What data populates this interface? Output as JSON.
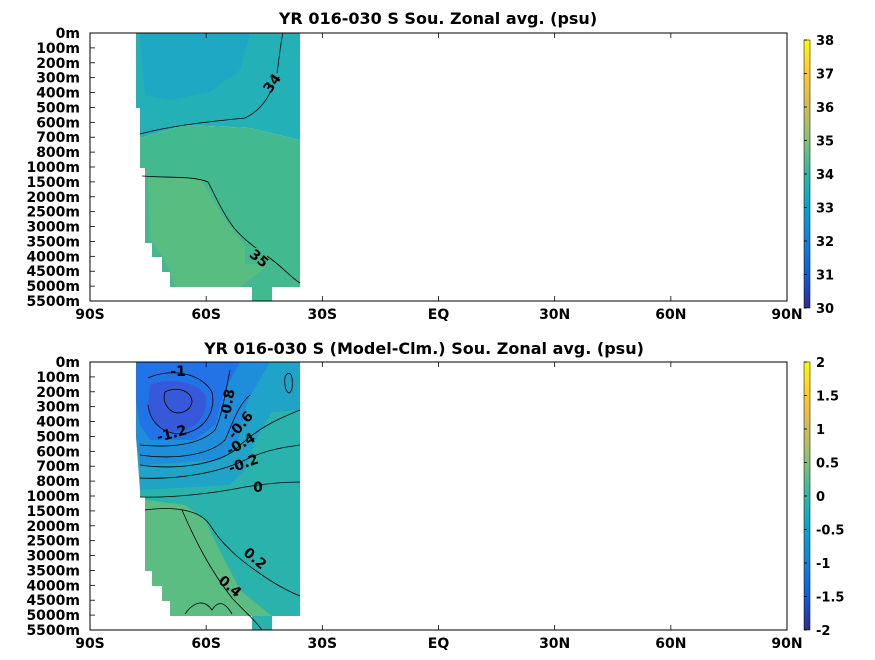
{
  "chart_data": [
    {
      "type": "heatmap",
      "title": "YR 016-030 S Sou. Zonal avg. (psu)",
      "xlabel": "",
      "ylabel": "",
      "x_ticks": [
        "90S",
        "60S",
        "30S",
        "EQ",
        "30N",
        "60N",
        "90N"
      ],
      "y_ticks": [
        "0m",
        "100m",
        "200m",
        "300m",
        "400m",
        "500m",
        "600m",
        "700m",
        "800m",
        "1000m",
        "1500m",
        "2000m",
        "2500m",
        "3000m",
        "3500m",
        "4000m",
        "4500m",
        "5000m",
        "5500m"
      ],
      "xlim": [
        -90,
        90
      ],
      "colorbar": {
        "min": 30,
        "max": 38,
        "ticks": [
          "30",
          "31",
          "32",
          "33",
          "34",
          "35",
          "36",
          "37",
          "38"
        ],
        "colormap": "parula"
      },
      "data_extent_lat": [
        -78,
        -35
      ],
      "contour_labels": [
        "34",
        "35"
      ],
      "grid": false
    },
    {
      "type": "heatmap",
      "title": "YR 016-030 S (Model-Clm.) Sou. Zonal avg. (psu)",
      "xlabel": "",
      "ylabel": "",
      "x_ticks": [
        "90S",
        "60S",
        "30S",
        "EQ",
        "30N",
        "60N",
        "90N"
      ],
      "y_ticks": [
        "0m",
        "100m",
        "200m",
        "300m",
        "400m",
        "500m",
        "600m",
        "700m",
        "800m",
        "1000m",
        "1500m",
        "2000m",
        "2500m",
        "3000m",
        "3500m",
        "4000m",
        "4500m",
        "5000m",
        "5500m"
      ],
      "xlim": [
        -90,
        90
      ],
      "colorbar": {
        "min": -2,
        "max": 2,
        "ticks": [
          "2",
          "1.5",
          "1",
          "0.5",
          "0",
          "-0.5",
          "-1",
          "-1.5",
          "-2"
        ],
        "colormap": "parula"
      },
      "data_extent_lat": [
        -78,
        -35
      ],
      "contour_labels": [
        "-1",
        "-1.2",
        "-0.8",
        "-0.6",
        "-0.4",
        "-0.2",
        "0",
        "0.2",
        "0.4"
      ],
      "grid": false
    }
  ]
}
